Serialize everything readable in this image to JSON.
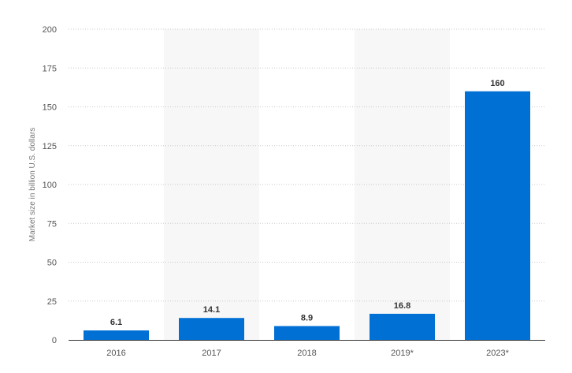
{
  "chart_data": {
    "type": "bar",
    "title": "",
    "xlabel": "",
    "ylabel": "Market size in billion U.S. dollars",
    "categories": [
      "2016",
      "2017",
      "2018",
      "2019*",
      "2023*"
    ],
    "values": [
      6.1,
      14.1,
      8.9,
      16.8,
      160
    ],
    "data_labels": [
      "6.1",
      "14.1",
      "8.9",
      "16.8",
      "160"
    ],
    "y_ticks": [
      0,
      25,
      50,
      75,
      100,
      125,
      150,
      175,
      200
    ],
    "ylim": [
      0,
      200
    ],
    "grid": true,
    "legend": "none",
    "colors": {
      "bar": "#0170d4",
      "alt_band": "#f7f7f7",
      "grid": "#c8c8c8"
    }
  }
}
